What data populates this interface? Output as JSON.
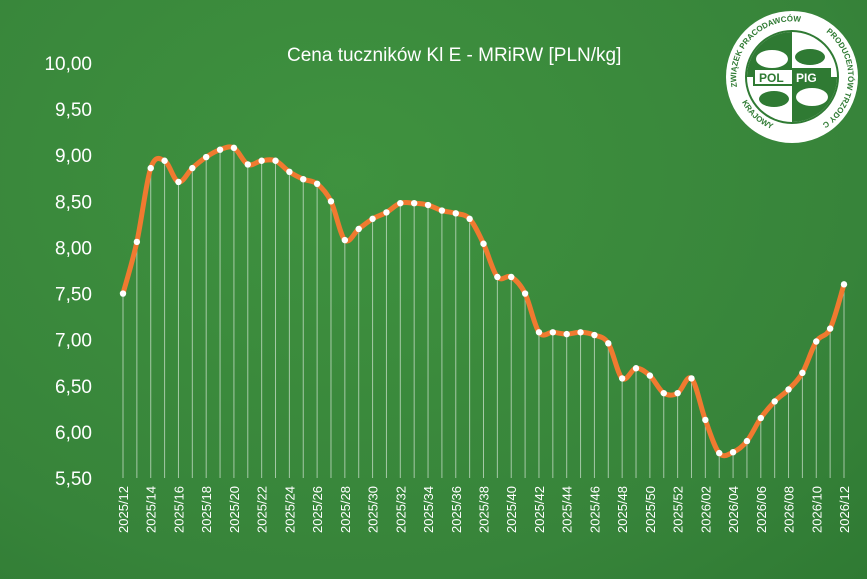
{
  "chart_data": {
    "type": "line",
    "title": "Cena tuczników Kl E - MRiRW [PLN/kg]",
    "xlabel": "",
    "ylabel": "",
    "ylim": [
      5.5,
      10.0
    ],
    "y_ticks": [
      "5,50",
      "6,00",
      "6,50",
      "7,00",
      "7,50",
      "8,00",
      "8,50",
      "9,00",
      "9,50",
      "10,00"
    ],
    "x_tick_labels": [
      "2025/12",
      "2025/14",
      "2025/16",
      "2025/18",
      "2025/20",
      "2025/22",
      "2025/24",
      "2025/26",
      "2025/28",
      "2025/30",
      "2025/32",
      "2025/34",
      "2025/36",
      "2025/38",
      "2025/40",
      "2025/42",
      "2025/44",
      "2025/46",
      "2025/48",
      "2025/50",
      "2025/52",
      "2026/02",
      "2026/04",
      "2026/06",
      "2026/08",
      "2026/10",
      "2026/12"
    ],
    "grid": "vertical drop lines",
    "legend": "none",
    "colors": {
      "line": "#f07a30",
      "point": "#ffffff",
      "text": "#ffffff",
      "background": "#3a8a3a"
    },
    "series": [
      {
        "x": [
          "2025/12",
          "2025/13",
          "2025/14",
          "2025/15",
          "2025/16",
          "2025/17",
          "2025/18",
          "2025/19",
          "2025/20",
          "2025/21",
          "2025/22",
          "2025/23",
          "2025/24",
          "2025/25",
          "2025/26",
          "2025/27",
          "2025/28",
          "2025/29",
          "2025/30",
          "2025/31",
          "2025/32",
          "2025/33",
          "2025/34",
          "2025/35",
          "2025/36",
          "2025/37",
          "2025/38",
          "2025/39",
          "2025/40",
          "2025/41",
          "2025/42",
          "2025/43",
          "2025/44",
          "2025/45",
          "2025/46",
          "2025/47",
          "2025/48",
          "2025/49",
          "2025/50",
          "2025/51",
          "2025/52",
          "2026/01",
          "2026/02",
          "2026/03",
          "2026/04",
          "2026/05",
          "2026/06",
          "2026/07",
          "2026/08",
          "2026/09",
          "2026/10",
          "2026/11",
          "2026/12"
        ],
        "values": [
          7.5,
          8.06,
          8.86,
          8.94,
          8.71,
          8.86,
          8.98,
          9.06,
          9.08,
          8.9,
          8.94,
          8.94,
          8.82,
          8.74,
          8.69,
          8.5,
          8.08,
          8.2,
          8.31,
          8.38,
          8.48,
          8.48,
          8.46,
          8.4,
          8.37,
          8.31,
          8.04,
          7.68,
          7.68,
          7.5,
          7.08,
          7.08,
          7.06,
          7.08,
          7.05,
          6.96,
          6.58,
          6.69,
          6.61,
          6.42,
          6.42,
          6.58,
          6.13,
          5.77,
          5.78,
          5.9,
          6.15,
          6.33,
          6.46,
          6.64,
          6.98,
          7.12,
          7.6
        ]
      }
    ]
  },
  "logo": {
    "top_text": "ZWIĄZEK PRACODAWCÓW",
    "right_text": "PRODUCENTÓW TRZODY CHLEWNEJ",
    "left_text": "KRAJOWY",
    "center_left": "POL",
    "center_right": "PIG"
  }
}
